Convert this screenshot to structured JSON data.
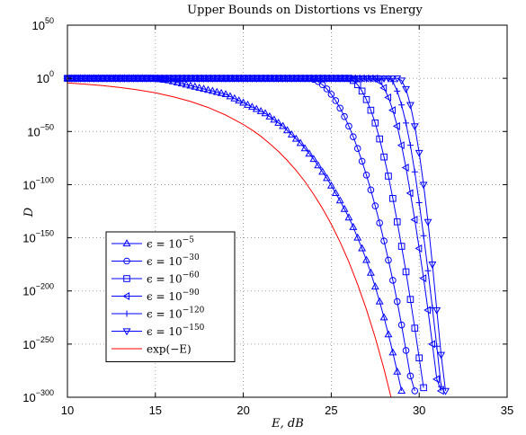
{
  "chart_data": {
    "type": "line",
    "title": "Upper Bounds on Distortions vs Energy",
    "xlabel": "E, dB",
    "ylabel": "D",
    "xlim": [
      10,
      35
    ],
    "ylim_log10": [
      -300,
      50
    ],
    "y_scale": "log",
    "grid": true,
    "legend_position": "lower-left",
    "x_ticks": [
      "10",
      "15",
      "20",
      "25",
      "30",
      "35"
    ],
    "y_ticks": [
      {
        "exp": 50,
        "base": "10",
        "sup": "50"
      },
      {
        "exp": 0,
        "base": "10",
        "sup": "0"
      },
      {
        "exp": -50,
        "base": "10",
        "sup": "−50"
      },
      {
        "exp": -100,
        "base": "10",
        "sup": "−100"
      },
      {
        "exp": -150,
        "base": "10",
        "sup": "−150"
      },
      {
        "exp": -200,
        "base": "10",
        "sup": "−200"
      },
      {
        "exp": -250,
        "base": "10",
        "sup": "−250"
      },
      {
        "exp": -300,
        "base": "10",
        "sup": "−300"
      }
    ],
    "series": [
      {
        "name": "ε = 10^−5",
        "label_main": "ϵ = 10",
        "label_sup": "−5",
        "marker": "triangle-up",
        "color": "#0000ff",
        "x_start": 10,
        "x_step": 0.25,
        "log10_y": [
          0,
          0,
          0,
          0,
          0,
          0,
          0,
          0,
          0,
          0,
          0,
          0,
          0,
          0,
          0,
          0,
          0,
          0,
          0,
          0,
          -0.5,
          -1,
          -1.5,
          -2,
          -3,
          -4,
          -5,
          -6,
          -7,
          -8,
          -9,
          -10,
          -11,
          -12,
          -13,
          -14,
          -15,
          -17,
          -19,
          -21,
          -23,
          -25,
          -27,
          -29,
          -31,
          -33,
          -36,
          -39,
          -42,
          -45,
          -49,
          -53,
          -57,
          -61,
          -66,
          -71,
          -76,
          -82,
          -88,
          -94,
          -101,
          -108,
          -115,
          -123,
          -131,
          -140,
          -150,
          -160,
          -171,
          -183,
          -196,
          -210,
          -225,
          -241,
          -258,
          -276,
          -294
        ]
      },
      {
        "name": "ε = 10^−30",
        "label_main": "ϵ = 10",
        "label_sup": "−30",
        "marker": "circle",
        "color": "#0000ff",
        "x_start": 10,
        "x_step": 0.25,
        "log10_y": [
          0,
          0,
          0,
          0,
          0,
          0,
          0,
          0,
          0,
          0,
          0,
          0,
          0,
          0,
          0,
          0,
          0,
          0,
          0,
          0,
          0,
          0,
          0,
          0,
          0,
          0,
          0,
          0,
          0,
          0,
          0,
          0,
          0,
          0,
          0,
          0,
          0,
          0,
          0,
          0,
          0,
          0,
          0,
          0,
          0,
          0,
          0,
          0,
          0,
          0,
          0,
          0,
          0,
          0,
          0,
          0,
          -1,
          -3,
          -6,
          -10,
          -15,
          -21,
          -28,
          -36,
          -45,
          -55,
          -66,
          -78,
          -91,
          -105,
          -120,
          -136,
          -153,
          -171,
          -190,
          -210,
          -232,
          -256,
          -280,
          -294
        ]
      },
      {
        "name": "ε = 10^−60",
        "label_main": "ϵ = 10",
        "label_sup": "−60",
        "marker": "square",
        "color": "#0000ff",
        "x_start": 10,
        "x_step": 0.25,
        "log10_y": [
          0,
          0,
          0,
          0,
          0,
          0,
          0,
          0,
          0,
          0,
          0,
          0,
          0,
          0,
          0,
          0,
          0,
          0,
          0,
          0,
          0,
          0,
          0,
          0,
          0,
          0,
          0,
          0,
          0,
          0,
          0,
          0,
          0,
          0,
          0,
          0,
          0,
          0,
          0,
          0,
          0,
          0,
          0,
          0,
          0,
          0,
          0,
          0,
          0,
          0,
          0,
          0,
          0,
          0,
          0,
          0,
          0,
          0,
          0,
          0,
          0,
          0,
          0,
          0,
          0,
          -2,
          -6,
          -12,
          -20,
          -30,
          -42,
          -57,
          -74,
          -92,
          -113,
          -135,
          -158,
          -182,
          -208,
          -235,
          -263,
          -291
        ]
      },
      {
        "name": "ε = 10^−90",
        "label_main": "ϵ = 10",
        "label_sup": "−90",
        "marker": "triangle-left",
        "color": "#0000ff",
        "x_start": 10,
        "x_step": 0.25,
        "log10_y": [
          0,
          0,
          0,
          0,
          0,
          0,
          0,
          0,
          0,
          0,
          0,
          0,
          0,
          0,
          0,
          0,
          0,
          0,
          0,
          0,
          0,
          0,
          0,
          0,
          0,
          0,
          0,
          0,
          0,
          0,
          0,
          0,
          0,
          0,
          0,
          0,
          0,
          0,
          0,
          0,
          0,
          0,
          0,
          0,
          0,
          0,
          0,
          0,
          0,
          0,
          0,
          0,
          0,
          0,
          0,
          0,
          0,
          0,
          0,
          0,
          0,
          0,
          0,
          0,
          0,
          0,
          0,
          0,
          0,
          0,
          0,
          -3,
          -9,
          -18,
          -30,
          -45,
          -63,
          -84,
          -108,
          -133,
          -160,
          -188,
          -218,
          -250,
          -283,
          -294
        ]
      },
      {
        "name": "ε = 10^−120",
        "label_main": "ϵ = 10",
        "label_sup": "−120",
        "marker": "plus",
        "color": "#0000ff",
        "x_start": 10,
        "x_step": 0.25,
        "log10_y": [
          0,
          0,
          0,
          0,
          0,
          0,
          0,
          0,
          0,
          0,
          0,
          0,
          0,
          0,
          0,
          0,
          0,
          0,
          0,
          0,
          0,
          0,
          0,
          0,
          0,
          0,
          0,
          0,
          0,
          0,
          0,
          0,
          0,
          0,
          0,
          0,
          0,
          0,
          0,
          0,
          0,
          0,
          0,
          0,
          0,
          0,
          0,
          0,
          0,
          0,
          0,
          0,
          0,
          0,
          0,
          0,
          0,
          0,
          0,
          0,
          0,
          0,
          0,
          0,
          0,
          0,
          0,
          0,
          0,
          0,
          0,
          0,
          0,
          0,
          -3,
          -12,
          -25,
          -42,
          -63,
          -88,
          -117,
          -148,
          -181,
          -216,
          -252,
          -290
        ]
      },
      {
        "name": "ε = 10^−150",
        "label_main": "ϵ = 10",
        "label_sup": "−150",
        "marker": "triangle-down",
        "color": "#0000ff",
        "x_start": 10,
        "x_step": 0.25,
        "log10_y": [
          0,
          0,
          0,
          0,
          0,
          0,
          0,
          0,
          0,
          0,
          0,
          0,
          0,
          0,
          0,
          0,
          0,
          0,
          0,
          0,
          0,
          0,
          0,
          0,
          0,
          0,
          0,
          0,
          0,
          0,
          0,
          0,
          0,
          0,
          0,
          0,
          0,
          0,
          0,
          0,
          0,
          0,
          0,
          0,
          0,
          0,
          0,
          0,
          0,
          0,
          0,
          0,
          0,
          0,
          0,
          0,
          0,
          0,
          0,
          0,
          0,
          0,
          0,
          0,
          0,
          0,
          0,
          0,
          0,
          0,
          0,
          0,
          0,
          0,
          0,
          0,
          -2,
          -10,
          -25,
          -45,
          -70,
          -100,
          -135,
          -175,
          -218,
          -260,
          -294
        ]
      },
      {
        "name": "exp(−E)",
        "label_main": "exp(−E)",
        "label_sup": "",
        "marker": "none",
        "color": "#ff0000",
        "x": [
          10,
          11,
          12,
          13,
          14,
          15,
          16,
          17,
          18,
          19,
          20,
          20.5,
          21,
          21.5,
          22,
          22.5,
          23,
          23.5,
          24,
          24.5,
          25,
          25.5,
          26,
          26.5,
          27,
          27.5,
          28,
          28.4
        ],
        "log10_y": [
          -4.3,
          -5.5,
          -6.9,
          -8.7,
          -10.9,
          -13.7,
          -17.3,
          -21.8,
          -27.4,
          -34.5,
          -43.4,
          -48.7,
          -54.6,
          -61.3,
          -68.8,
          -77.2,
          -86.6,
          -97.1,
          -109,
          -122.3,
          -137.2,
          -153.9,
          -172.7,
          -193.7,
          -217.3,
          -243.8,
          -273.5,
          -300
        ]
      }
    ]
  }
}
